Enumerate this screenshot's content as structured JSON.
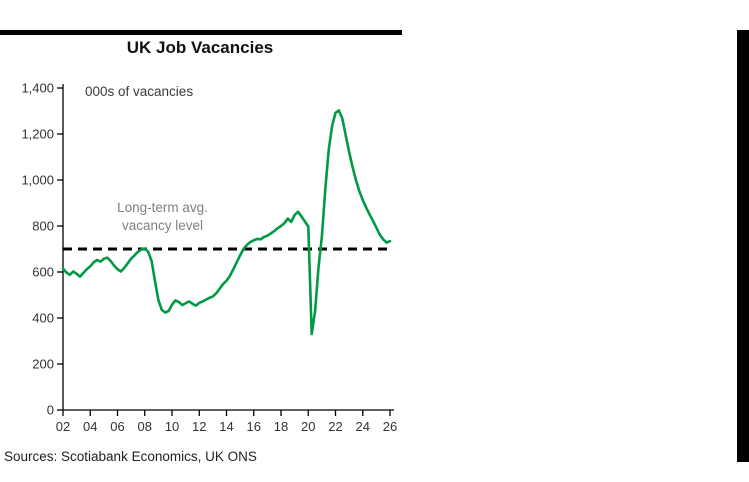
{
  "header": {
    "title": "UK Job Vacancies"
  },
  "annotations": {
    "units": "000s of vacancies",
    "avg_label_line1": "Long-term avg.",
    "avg_label_line2": "vacancy level"
  },
  "footer": {
    "sources": "Sources: Scotiabank Economics, UK ONS"
  },
  "colors": {
    "line": "#009A44",
    "avg_line": "#000000",
    "axis": "#000000",
    "annotation_gray": "#808080"
  },
  "chart_data": {
    "type": "line",
    "title": "UK Job Vacancies",
    "units": "000s of vacancies",
    "series_name": "UK job vacancies (000s)",
    "x_start": 2002,
    "x_step_years": 0.25,
    "values": [
      615,
      598,
      588,
      602,
      592,
      580,
      596,
      612,
      625,
      642,
      652,
      645,
      658,
      662,
      648,
      628,
      612,
      602,
      618,
      638,
      658,
      672,
      688,
      698,
      702,
      688,
      648,
      560,
      478,
      435,
      424,
      430,
      458,
      476,
      470,
      456,
      464,
      472,
      462,
      454,
      466,
      472,
      480,
      488,
      494,
      508,
      528,
      548,
      562,
      582,
      612,
      642,
      672,
      700,
      718,
      730,
      738,
      744,
      742,
      752,
      758,
      768,
      778,
      790,
      800,
      812,
      832,
      818,
      848,
      862,
      842,
      820,
      798,
      330,
      430,
      620,
      755,
      960,
      1130,
      1235,
      1292,
      1302,
      1268,
      1195,
      1122,
      1058,
      1000,
      952,
      912,
      880,
      850,
      822,
      792,
      762,
      742,
      728,
      734
    ],
    "avg_line_value": 700,
    "avg_line_label": "Long-term avg. vacancy level",
    "ylim": [
      0,
      1400
    ],
    "yticks": [
      0,
      200,
      400,
      600,
      800,
      1000,
      1200,
      1400
    ],
    "ytick_labels": [
      "0",
      "200",
      "400",
      "600",
      "800",
      "1,000",
      "1,200",
      "1,400"
    ],
    "xticks": [
      2002,
      2004,
      2006,
      2008,
      2010,
      2012,
      2014,
      2016,
      2018,
      2020,
      2022,
      2024,
      2026
    ],
    "xtick_labels": [
      "02",
      "04",
      "06",
      "08",
      "10",
      "12",
      "14",
      "16",
      "18",
      "20",
      "22",
      "24",
      "26"
    ],
    "grid": false,
    "legend": "none"
  }
}
